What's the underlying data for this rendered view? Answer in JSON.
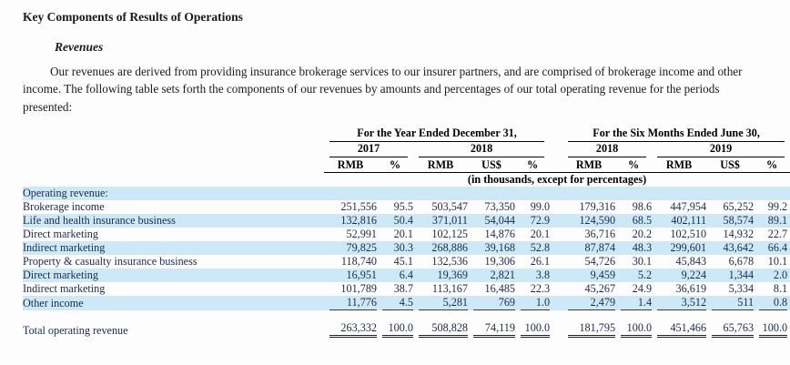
{
  "page": {
    "title": "Key Components of Results of Operations",
    "section": "Revenues",
    "paragraph": "Our revenues are derived from providing insurance brokerage services to our insurer partners, and are comprised of brokerage income and other income. The following table sets forth the components of our revenues by amounts and percentages of our total operating revenue for the periods presented:"
  },
  "table": {
    "group_headers": [
      "For the Year Ended December 31,",
      "For the Six Months Ended June 30,"
    ],
    "year_headers": [
      "2017",
      "2018",
      "2018",
      "2019"
    ],
    "col_headers": [
      "RMB",
      "%",
      "RMB",
      "US$",
      "%",
      "RMB",
      "%",
      "RMB",
      "US$",
      "%"
    ],
    "units_note": "(in thousands, except for percentages)",
    "rows": [
      {
        "label": "Operating revenue:",
        "indent": 0,
        "shade": true,
        "values": [
          "",
          "",
          "",
          "",
          "",
          "",
          "",
          "",
          "",
          ""
        ]
      },
      {
        "label": "Brokerage income",
        "indent": 1,
        "shade": false,
        "values": [
          "251,556",
          "95.5",
          "503,547",
          "73,350",
          "99.0",
          "179,316",
          "98.6",
          "447,954",
          "65,252",
          "99.2"
        ]
      },
      {
        "label": "Life and health insurance business",
        "indent": 2,
        "shade": true,
        "values": [
          "132,816",
          "50.4",
          "371,011",
          "54,044",
          "72.9",
          "124,590",
          "68.5",
          "402,111",
          "58,574",
          "89.1"
        ]
      },
      {
        "label": "Direct marketing",
        "indent": 3,
        "shade": false,
        "values": [
          "52,991",
          "20.1",
          "102,125",
          "14,876",
          "20.1",
          "36,716",
          "20.2",
          "102,510",
          "14,932",
          "22.7"
        ]
      },
      {
        "label": "Indirect marketing",
        "indent": 3,
        "shade": true,
        "values": [
          "79,825",
          "30.3",
          "268,886",
          "39,168",
          "52.8",
          "87,874",
          "48.3",
          "299,601",
          "43,642",
          "66.4"
        ]
      },
      {
        "label": "Property & casualty insurance business",
        "indent": 2,
        "shade": false,
        "values": [
          "118,740",
          "45.1",
          "132,536",
          "19,306",
          "26.1",
          "54,726",
          "30.1",
          "45,843",
          "6,678",
          "10.1"
        ]
      },
      {
        "label": "Direct marketing",
        "indent": 3,
        "shade": true,
        "values": [
          "16,951",
          "6.4",
          "19,369",
          "2,821",
          "3.8",
          "9,459",
          "5.2",
          "9,224",
          "1,344",
          "2.0"
        ]
      },
      {
        "label": "Indirect marketing",
        "indent": 3,
        "shade": false,
        "values": [
          "101,789",
          "38.7",
          "113,167",
          "16,485",
          "22.3",
          "45,267",
          "24.9",
          "36,619",
          "5,334",
          "8.1"
        ]
      },
      {
        "label": "Other income",
        "indent": 1,
        "shade": true,
        "underline": true,
        "values": [
          "11,776",
          "4.5",
          "5,281",
          "769",
          "1.0",
          "2,479",
          "1.4",
          "3,512",
          "511",
          "0.8"
        ]
      }
    ],
    "total_row": {
      "label": "Total operating revenue",
      "indent": 0,
      "values": [
        "263,332",
        "100.0",
        "508,828",
        "74,119",
        "100.0",
        "181,795",
        "100.0",
        "451,466",
        "65,763",
        "100.0"
      ]
    }
  },
  "colors": {
    "stripe": "#cde9f7",
    "table_text": "#1b2a4c",
    "rule": "#000000"
  }
}
